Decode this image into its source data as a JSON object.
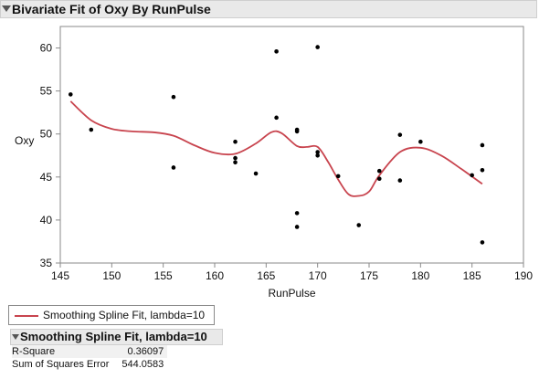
{
  "window": {
    "title": "Bivariate Fit of Oxy By RunPulse"
  },
  "colors": {
    "fit_line": "#c8444e",
    "points": "#000000",
    "frame": "#8a8a8a",
    "header_bg": "#e9e9e9"
  },
  "icons": {
    "title_disclosure": "disclosure-triangle-down-icon",
    "report_disclosure": "disclosure-triangle-down-icon"
  },
  "legend": {
    "label": "Smoothing Spline Fit, lambda=10"
  },
  "report": {
    "title": "Smoothing Spline Fit, lambda=10",
    "rows": [
      {
        "label": "R-Square",
        "value": "0.36097"
      },
      {
        "label": "Sum of Squares Error",
        "value": "544.0583"
      }
    ]
  },
  "chart_data": {
    "type": "scatter",
    "xlabel": "RunPulse",
    "ylabel": "Oxy",
    "xlim": [
      145,
      190
    ],
    "ylim": [
      35,
      62.5
    ],
    "xticks": [
      "145",
      "150",
      "155",
      "160",
      "165",
      "170",
      "175",
      "180",
      "185",
      "190"
    ],
    "yticks": [
      "35",
      "40",
      "45",
      "50",
      "55",
      "60"
    ],
    "grid": false,
    "points": [
      [
        146,
        54.6
      ],
      [
        148,
        50.5
      ],
      [
        156,
        54.3
      ],
      [
        156,
        46.1
      ],
      [
        162,
        49.1
      ],
      [
        162,
        47.2
      ],
      [
        162,
        46.7
      ],
      [
        164,
        45.4
      ],
      [
        166,
        59.6
      ],
      [
        166,
        51.9
      ],
      [
        168,
        50.5
      ],
      [
        168,
        50.3
      ],
      [
        168,
        40.8
      ],
      [
        168,
        39.2
      ],
      [
        170,
        60.1
      ],
      [
        170,
        47.9
      ],
      [
        170,
        47.5
      ],
      [
        172,
        45.1
      ],
      [
        174,
        39.4
      ],
      [
        176,
        45.7
      ],
      [
        176,
        44.8
      ],
      [
        178,
        49.9
      ],
      [
        178,
        44.6
      ],
      [
        180,
        49.1
      ],
      [
        185,
        45.2
      ],
      [
        186,
        48.7
      ],
      [
        186,
        45.8
      ],
      [
        186,
        37.4
      ]
    ],
    "fit_series": {
      "name": "Smoothing Spline Fit, lambda=10",
      "x": [
        146,
        148,
        150,
        152,
        154,
        156,
        158,
        160,
        162,
        164,
        165.5,
        166.5,
        168,
        169,
        170,
        171,
        172,
        173,
        174,
        175,
        176,
        178,
        180,
        182,
        184,
        186
      ],
      "y": [
        53.8,
        51.6,
        50.6,
        50.3,
        50.2,
        49.8,
        48.7,
        47.8,
        47.7,
        48.9,
        50.2,
        50.1,
        48.6,
        48.5,
        48.5,
        46.8,
        44.7,
        43.0,
        42.8,
        43.3,
        45.2,
        47.9,
        48.4,
        47.5,
        45.9,
        44.2
      ]
    }
  }
}
